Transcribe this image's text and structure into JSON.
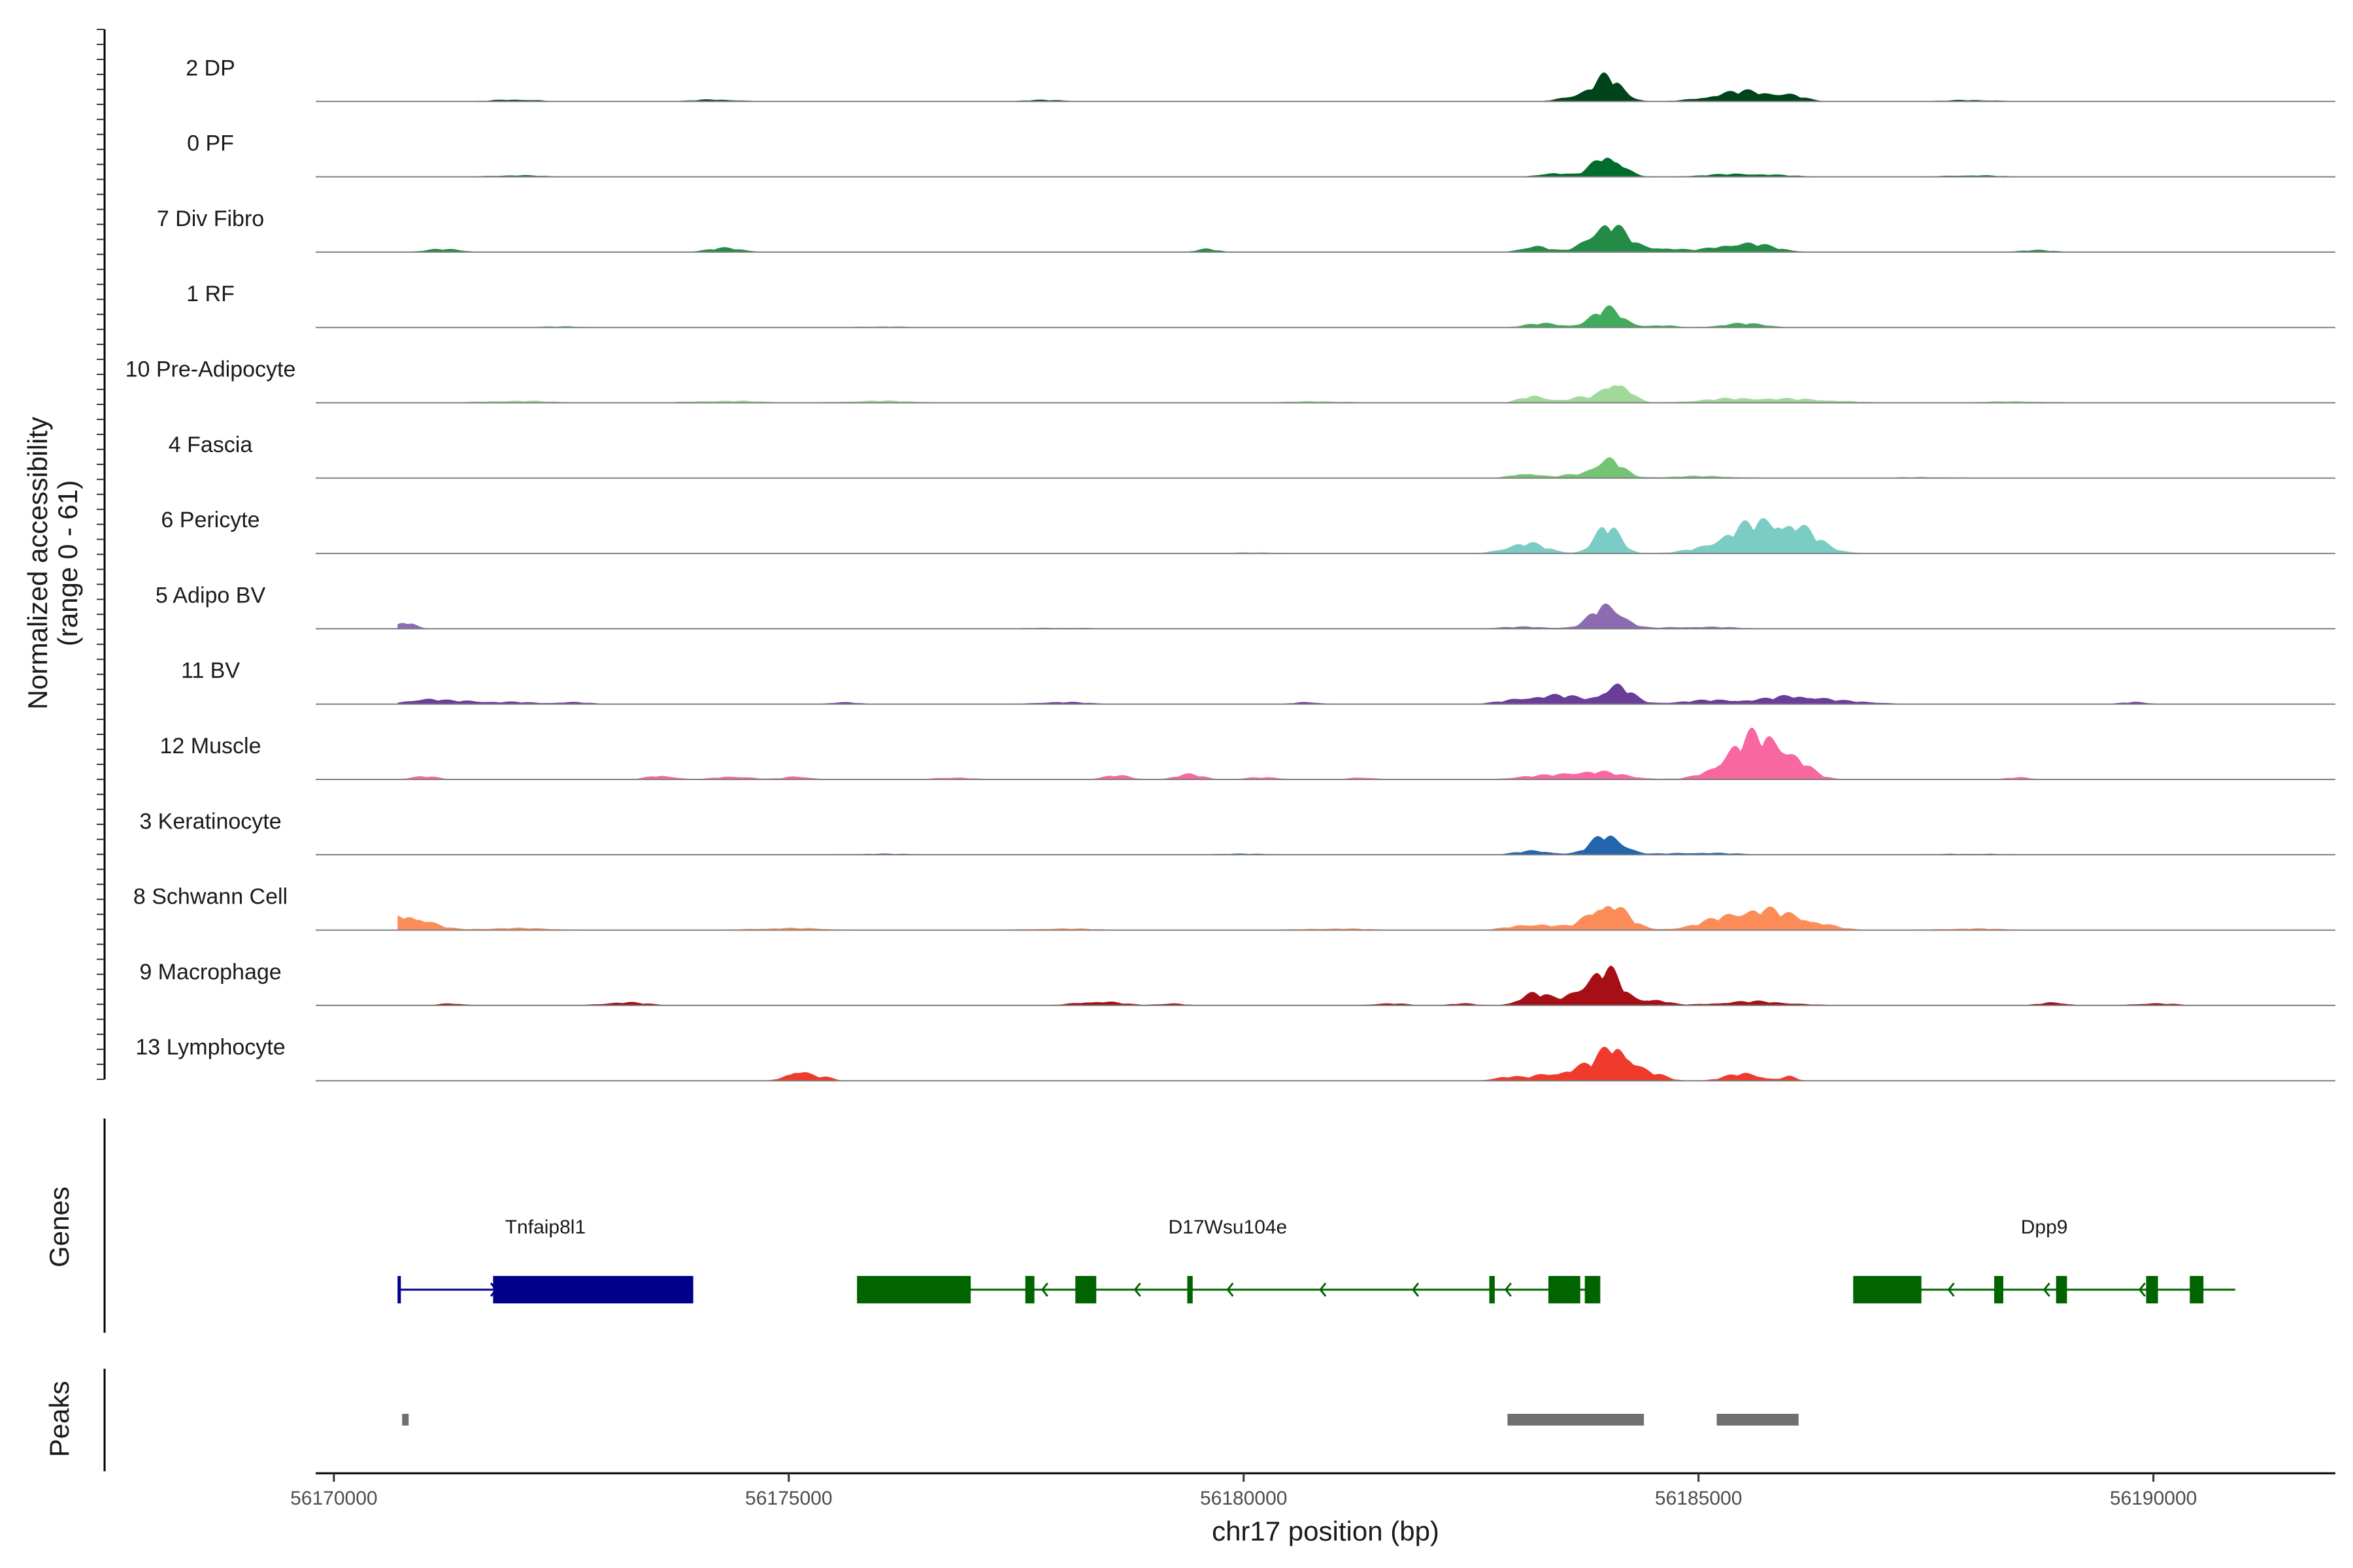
{
  "chart_data": {
    "type": "area",
    "title": "",
    "chromosome": "chr17",
    "xlabel": "chr17 position (bp)",
    "ylabel_line1": "Normalized accessibility",
    "ylabel_line2": "(range 0 - 61)",
    "xlim": [
      56169800,
      56192000
    ],
    "ylim": [
      0,
      61
    ],
    "x_ticks": [
      56170000,
      56175000,
      56180000,
      56185000,
      56190000
    ],
    "x_tick_labels": [
      "56170000",
      "56175000",
      "56180000",
      "56185000",
      "56190000"
    ],
    "panel_titles": {
      "genes": "Genes",
      "peaks": "Peaks"
    },
    "tracks": [
      {
        "name": "2 DP",
        "color": "#00441b",
        "peaks": [
          [
            56184000,
            24,
            160
          ],
          [
            56183600,
            5,
            150
          ],
          [
            56185500,
            10,
            350
          ],
          [
            56186000,
            4,
            150
          ],
          [
            56172000,
            2,
            250
          ],
          [
            56174200,
            2,
            250
          ],
          [
            56177800,
            1.5,
            250
          ],
          [
            56188000,
            1.5,
            300
          ]
        ]
      },
      {
        "name": "0 PF",
        "color": "#006d2c",
        "peaks": [
          [
            56184000,
            22,
            160
          ],
          [
            56183400,
            4,
            150
          ],
          [
            56185500,
            3,
            400
          ],
          [
            56172000,
            1.5,
            300
          ],
          [
            56188000,
            1.5,
            300
          ]
        ]
      },
      {
        "name": "7 Div Fibro",
        "color": "#238b45",
        "peaks": [
          [
            56184000,
            28,
            200
          ],
          [
            56183200,
            6,
            150
          ],
          [
            56185500,
            9,
            300
          ],
          [
            56184600,
            4,
            200
          ],
          [
            56174300,
            4,
            200
          ],
          [
            56171200,
            3,
            200
          ],
          [
            56179600,
            3,
            120
          ],
          [
            56188700,
            2,
            200
          ]
        ]
      },
      {
        "name": "1 RF",
        "color": "#41ab5d",
        "peaks": [
          [
            56184000,
            18,
            170
          ],
          [
            56183300,
            4,
            200
          ],
          [
            56185500,
            4,
            250
          ],
          [
            56184600,
            2,
            150
          ],
          [
            56172500,
            1,
            300
          ],
          [
            56176000,
            1,
            300
          ]
        ]
      },
      {
        "name": "10 Pre-Adipocyte",
        "color": "#a1d99b",
        "peaks": [
          [
            56184100,
            22,
            140
          ],
          [
            56183200,
            7,
            150
          ],
          [
            56183700,
            5,
            150
          ],
          [
            56185400,
            4,
            400
          ],
          [
            56186200,
            3,
            400
          ],
          [
            56174300,
            2,
            400
          ],
          [
            56172000,
            2,
            400
          ],
          [
            56176000,
            2,
            400
          ],
          [
            56180800,
            1.5,
            400
          ],
          [
            56188500,
            1.5,
            400
          ]
        ]
      },
      {
        "name": "4 Fascia",
        "color": "#74c476",
        "peaks": [
          [
            56184000,
            20,
            150
          ],
          [
            56183100,
            5,
            150
          ],
          [
            56183600,
            3,
            150
          ],
          [
            56185000,
            2,
            400
          ],
          [
            56187500,
            1,
            400
          ]
        ]
      },
      {
        "name": "6 Pericyte",
        "color": "#7bccc4",
        "peaks": [
          [
            56184000,
            26,
            140
          ],
          [
            56183100,
            10,
            220
          ],
          [
            56185700,
            30,
            400
          ],
          [
            56186100,
            10,
            200
          ],
          [
            56180000,
            1,
            400
          ]
        ]
      },
      {
        "name": "5 Adipo BV",
        "color": "#8c6bb1",
        "peaks": [
          [
            56184000,
            24,
            170
          ],
          [
            56170800,
            6,
            100
          ],
          [
            56185000,
            2,
            400
          ],
          [
            56183100,
            2,
            300
          ],
          [
            56178000,
            1,
            400
          ]
        ]
      },
      {
        "name": "11 BV",
        "color": "#6a3d9a",
        "peaks": [
          [
            56184100,
            18,
            160
          ],
          [
            56183200,
            7,
            280
          ],
          [
            56183600,
            5,
            200
          ],
          [
            56186100,
            8,
            300
          ],
          [
            56185200,
            4,
            400
          ],
          [
            56171000,
            5,
            200
          ],
          [
            56171500,
            3,
            200
          ],
          [
            56172000,
            2,
            200
          ],
          [
            56172600,
            2,
            200
          ],
          [
            56175600,
            2,
            150
          ],
          [
            56178000,
            2,
            300
          ],
          [
            56180700,
            2,
            150
          ],
          [
            56186800,
            2,
            250
          ],
          [
            56189800,
            2,
            150
          ]
        ]
      },
      {
        "name": "12 Muscle",
        "color": "#f768a1",
        "peaks": [
          [
            56185600,
            40,
            300
          ],
          [
            56186000,
            14,
            200
          ],
          [
            56183800,
            8,
            350
          ],
          [
            56183100,
            2,
            200
          ],
          [
            56171000,
            3,
            150
          ],
          [
            56173600,
            4,
            150
          ],
          [
            56174400,
            3,
            200
          ],
          [
            56175100,
            3,
            150
          ],
          [
            56176800,
            2,
            200
          ],
          [
            56178600,
            4,
            150
          ],
          [
            56179400,
            5,
            150
          ],
          [
            56180200,
            2,
            200
          ],
          [
            56181300,
            2,
            150
          ],
          [
            56188500,
            2,
            150
          ]
        ]
      },
      {
        "name": "3 Keratinocyte",
        "color": "#2166ac",
        "peaks": [
          [
            56184000,
            20,
            170
          ],
          [
            56183200,
            4,
            200
          ],
          [
            56185000,
            2,
            400
          ],
          [
            56176000,
            1,
            400
          ],
          [
            56180000,
            1,
            400
          ],
          [
            56188000,
            1,
            400
          ]
        ]
      },
      {
        "name": "8 Schwann Cell",
        "color": "#fc8d59",
        "peaks": [
          [
            56184000,
            28,
            200
          ],
          [
            56183200,
            6,
            250
          ],
          [
            56185600,
            20,
            400
          ],
          [
            56186200,
            5,
            250
          ],
          [
            56170800,
            15,
            240
          ],
          [
            56172000,
            2,
            400
          ],
          [
            56175000,
            2,
            400
          ],
          [
            56178000,
            1.5,
            400
          ],
          [
            56181000,
            1.5,
            400
          ],
          [
            56188000,
            1.5,
            400
          ]
        ]
      },
      {
        "name": "9 Macrophage",
        "color": "#a50f15",
        "peaks": [
          [
            56184000,
            32,
            160
          ],
          [
            56183700,
            14,
            160
          ],
          [
            56183200,
            12,
            160
          ],
          [
            56184500,
            6,
            150
          ],
          [
            56185600,
            4,
            400
          ],
          [
            56178400,
            4,
            250
          ],
          [
            56173200,
            3,
            250
          ],
          [
            56171300,
            2,
            150
          ],
          [
            56179200,
            2,
            150
          ],
          [
            56181600,
            2,
            200
          ],
          [
            56182400,
            2,
            150
          ],
          [
            56188900,
            3,
            150
          ],
          [
            56190000,
            2,
            250
          ]
        ]
      },
      {
        "name": "13 Lymphocyte",
        "color": "#ef3b2c",
        "peaks": [
          [
            56184100,
            34,
            170
          ],
          [
            56183700,
            12,
            200
          ],
          [
            56184500,
            6,
            150
          ],
          [
            56185500,
            7,
            200
          ],
          [
            56182900,
            4,
            150
          ],
          [
            56183300,
            5,
            150
          ],
          [
            56175100,
            10,
            130
          ],
          [
            56175400,
            3,
            100
          ],
          [
            56186000,
            4,
            80
          ]
        ]
      }
    ],
    "genes": [
      {
        "name": "Tnfaip8l1",
        "color": "#00008b",
        "strand": "+",
        "start": 56170700,
        "end": 56173950,
        "exons": [
          [
            56170700,
            56170720
          ],
          [
            56171750,
            56173950
          ]
        ]
      },
      {
        "name": "D17Wsu104e",
        "color": "#006400",
        "strand": "-",
        "start": 56175750,
        "end": 56183900,
        "exons": [
          [
            56175750,
            56177000
          ],
          [
            56177600,
            56177700
          ],
          [
            56178150,
            56178380
          ],
          [
            56179380,
            56179440
          ],
          [
            56182700,
            56182760
          ],
          [
            56183350,
            56183700
          ],
          [
            56183750,
            56183920
          ]
        ]
      },
      {
        "name": "Dpp9",
        "color": "#006400",
        "strand": "-",
        "start": 56186700,
        "end": 56190900,
        "exons": [
          [
            56186700,
            56187450
          ],
          [
            56188250,
            56188350
          ],
          [
            56188930,
            56189050
          ],
          [
            56189920,
            56190050
          ],
          [
            56190400,
            56190550
          ]
        ]
      }
    ],
    "peaks_regions": [
      [
        56170750,
        56170820
      ],
      [
        56182900,
        56184400
      ],
      [
        56185200,
        56186100
      ]
    ]
  }
}
